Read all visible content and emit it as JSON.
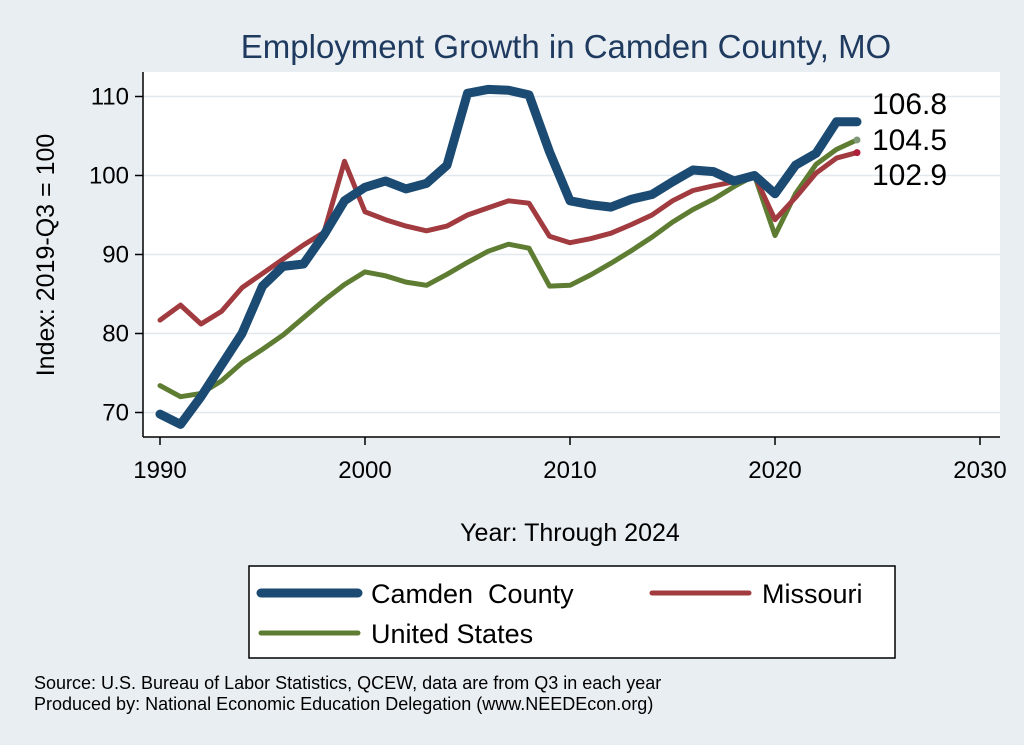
{
  "chart_data": {
    "type": "line",
    "title": "Employment Growth in Camden County, MO",
    "xlabel": "Year: Through 2024",
    "ylabel": "Index: 2019-Q3 = 100",
    "xlim": [
      1990,
      2030
    ],
    "ylim": [
      66,
      113
    ],
    "xticks": [
      1990,
      2000,
      2010,
      2020,
      2030
    ],
    "yticks": [
      70,
      80,
      90,
      100,
      110
    ],
    "grid": true,
    "legend_position": "bottom",
    "x": [
      1990,
      1991,
      1992,
      1993,
      1994,
      1995,
      1996,
      1997,
      1998,
      1999,
      2000,
      2001,
      2002,
      2003,
      2004,
      2005,
      2006,
      2007,
      2008,
      2009,
      2010,
      2011,
      2012,
      2013,
      2014,
      2015,
      2016,
      2017,
      2018,
      2019,
      2020,
      2021,
      2022,
      2023,
      2024
    ],
    "series": [
      {
        "name": "Camden  County",
        "color": "#1b4a72",
        "end_label": "106.8",
        "values": [
          69.8,
          68.5,
          72.0,
          76.0,
          80.0,
          86.0,
          88.5,
          88.8,
          92.5,
          96.8,
          98.5,
          99.3,
          98.3,
          99.0,
          101.3,
          110.4,
          110.9,
          110.8,
          110.2,
          103.0,
          96.8,
          96.3,
          96.0,
          97.0,
          97.6,
          99.2,
          100.7,
          100.5,
          99.3,
          100.0,
          97.7,
          101.3,
          102.8,
          106.8,
          106.8
        ]
      },
      {
        "name": "Missouri",
        "color": "#a13b3f",
        "end_label": "102.9",
        "values": [
          81.7,
          83.6,
          81.2,
          82.8,
          85.8,
          87.6,
          89.4,
          91.2,
          92.8,
          101.8,
          95.4,
          94.4,
          93.6,
          93.0,
          93.6,
          95.0,
          95.9,
          96.8,
          96.5,
          92.3,
          91.5,
          92.0,
          92.7,
          93.8,
          95.0,
          96.8,
          98.1,
          98.7,
          99.2,
          100.0,
          94.4,
          97.2,
          100.3,
          102.2,
          102.9
        ]
      },
      {
        "name": "United States",
        "color": "#5e7d33",
        "end_label": "104.5",
        "values": [
          73.4,
          72.0,
          72.4,
          74.0,
          76.3,
          78.0,
          79.8,
          82.0,
          84.2,
          86.2,
          87.8,
          87.3,
          86.5,
          86.1,
          87.5,
          89.0,
          90.4,
          91.3,
          90.8,
          86.0,
          86.1,
          87.4,
          88.9,
          90.5,
          92.2,
          94.1,
          95.7,
          97.0,
          98.6,
          100.0,
          92.4,
          97.7,
          101.4,
          103.3,
          104.5
        ]
      }
    ],
    "notes": [
      "Source: U.S. Bureau of Labor Statistics, QCEW, data are from Q3 in each year",
      "Produced by: National Economic Education Delegation (www.NEEDEcon.org)"
    ]
  }
}
